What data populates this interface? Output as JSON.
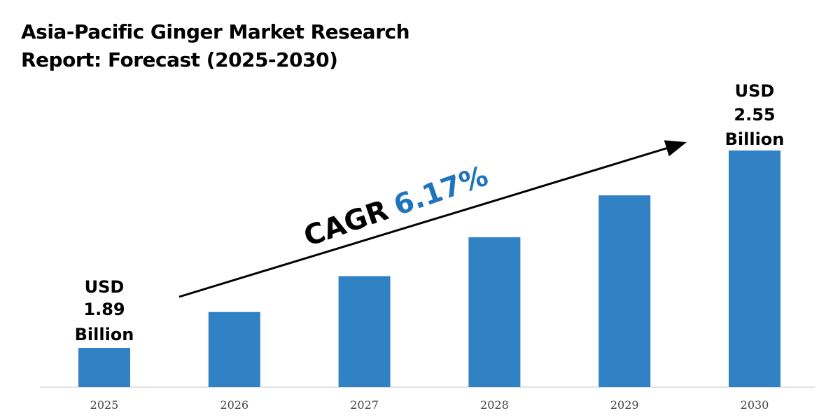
{
  "chart_data": {
    "type": "bar",
    "title_line1": "Asia-Pacific Ginger Market Research",
    "title_line2": "Report: Forecast (2025-2030)",
    "categories": [
      "2025",
      "2026",
      "2027",
      "2028",
      "2029",
      "2030"
    ],
    "values": [
      1.89,
      2.01,
      2.13,
      2.26,
      2.4,
      2.55
    ],
    "unit": "USD Billion",
    "annotations": {
      "first": [
        "USD",
        "1.89",
        "Billion"
      ],
      "last": [
        "USD",
        "2.55",
        "Billion"
      ],
      "cagr_label": "CAGR",
      "cagr_value": "6.17%"
    },
    "grid": false,
    "legend": "none",
    "colors": {
      "bar": "#3182c4",
      "cagr_value": "#1f74bd",
      "arrow": "#000000"
    }
  }
}
